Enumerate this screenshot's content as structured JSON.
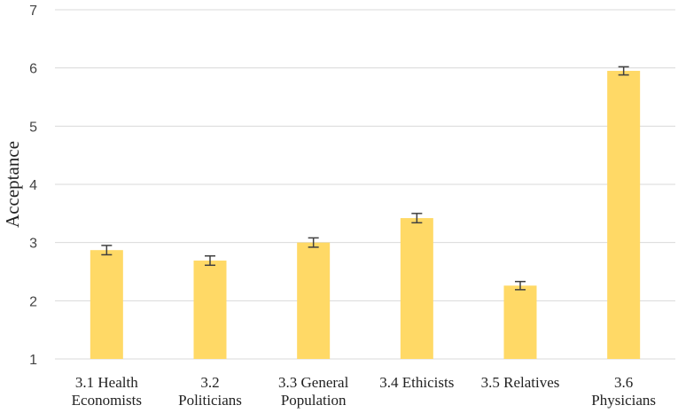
{
  "chart_data": {
    "type": "bar",
    "title": "",
    "xlabel": "",
    "ylabel": "Acceptance",
    "ylim": [
      1,
      7
    ],
    "yticks": [
      "1",
      "2",
      "3",
      "4",
      "5",
      "6",
      "7"
    ],
    "categories": [
      [
        "3.1 Health",
        "Economists"
      ],
      [
        "3.2",
        "Politicians"
      ],
      [
        "3.3 General",
        "Population"
      ],
      [
        "3.4 Ethicists"
      ],
      [
        "3.5 Relatives"
      ],
      [
        "3.6",
        "Physicians"
      ]
    ],
    "values": [
      2.87,
      2.69,
      3.0,
      3.42,
      2.26,
      5.95
    ],
    "errors": [
      0.08,
      0.08,
      0.08,
      0.08,
      0.07,
      0.07
    ],
    "grid": true,
    "bar_color": "#FFD966",
    "error_color": "#404040",
    "grid_color": "#D9D9D9"
  }
}
